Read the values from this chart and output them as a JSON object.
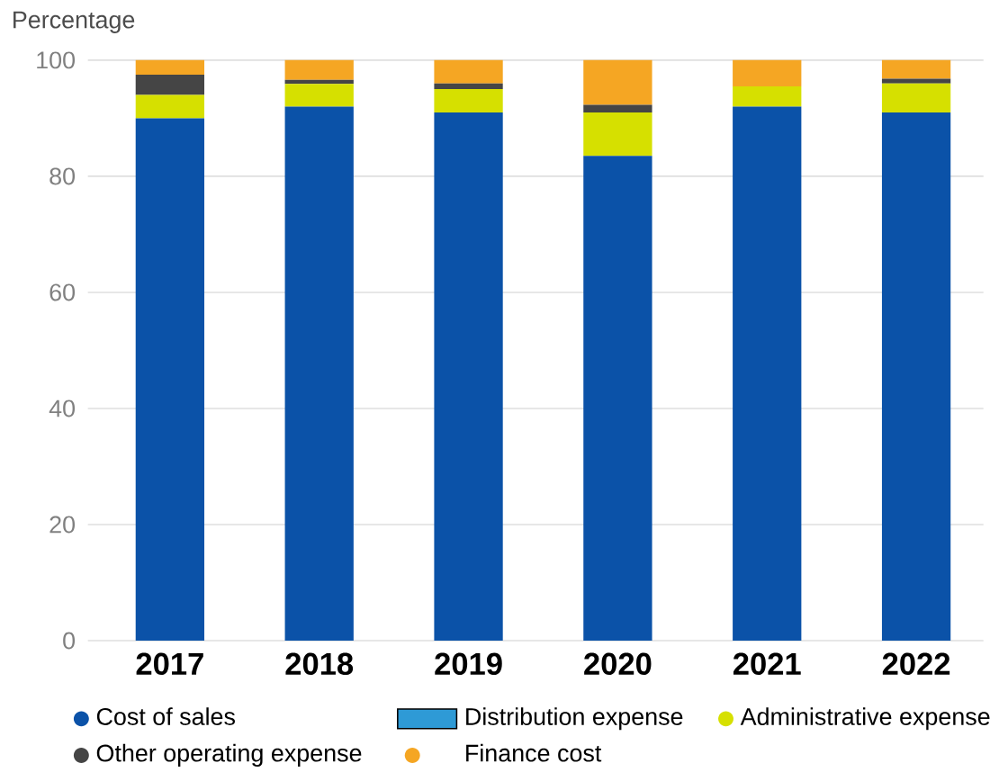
{
  "chart_data": {
    "type": "bar",
    "stacked": true,
    "ylabel": "Percentage",
    "categories": [
      "2017",
      "2018",
      "2019",
      "2020",
      "2021",
      "2022"
    ],
    "series": [
      {
        "name": "Cost of sales",
        "color": "#0b52a8",
        "values": [
          90,
          92,
          91,
          83.5,
          92,
          91
        ]
      },
      {
        "name": "Distribution expense",
        "color": "#2e9ad6",
        "values": [
          null,
          null,
          null,
          null,
          null,
          null
        ]
      },
      {
        "name": "Administrative expense",
        "color": "#d6e000",
        "values": [
          4,
          3.9,
          4,
          7.5,
          3.5,
          5
        ]
      },
      {
        "name": "Other operating expense",
        "color": "#454545",
        "values": [
          3.5,
          0.7,
          1,
          1.3,
          0,
          0.8
        ]
      },
      {
        "name": "Finance cost",
        "color": "#f5a623",
        "values": [
          2.5,
          3.4,
          4,
          7.7,
          4.5,
          3.2
        ]
      }
    ],
    "ylim": [
      0,
      100
    ],
    "yticks": [
      0,
      20,
      40,
      60,
      80,
      100
    ],
    "grid": "y",
    "legend": "bottom"
  }
}
